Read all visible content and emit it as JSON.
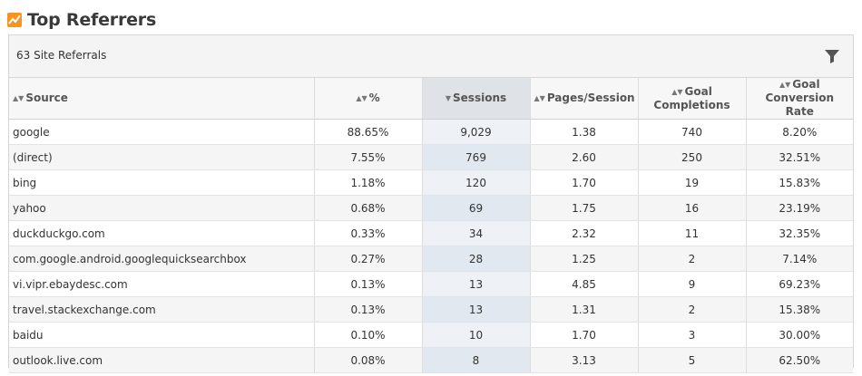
{
  "header": {
    "title": "Top Referrers",
    "icon": "analytics-chart-icon",
    "accent_color": "#f7931e"
  },
  "panel": {
    "count_label": "63 Site Referrals",
    "filter_icon": "filter-icon"
  },
  "table": {
    "columns": [
      {
        "label": "Source"
      },
      {
        "label": "%"
      },
      {
        "label": "Sessions",
        "sorted": "descending"
      },
      {
        "label": "Pages/Session"
      },
      {
        "label": "Goal Completions"
      },
      {
        "label": "Goal Conversion Rate"
      }
    ],
    "rows": [
      {
        "source": "google",
        "pct": "88.65%",
        "sessions": "9,029",
        "pages": "1.38",
        "goals": "740",
        "rate": "8.20%"
      },
      {
        "source": "(direct)",
        "pct": "7.55%",
        "sessions": "769",
        "pages": "2.60",
        "goals": "250",
        "rate": "32.51%"
      },
      {
        "source": "bing",
        "pct": "1.18%",
        "sessions": "120",
        "pages": "1.70",
        "goals": "19",
        "rate": "15.83%"
      },
      {
        "source": "yahoo",
        "pct": "0.68%",
        "sessions": "69",
        "pages": "1.75",
        "goals": "16",
        "rate": "23.19%"
      },
      {
        "source": "duckduckgo.com",
        "pct": "0.33%",
        "sessions": "34",
        "pages": "2.32",
        "goals": "11",
        "rate": "32.35%"
      },
      {
        "source": "com.google.android.googlequicksearchbox",
        "pct": "0.27%",
        "sessions": "28",
        "pages": "1.25",
        "goals": "2",
        "rate": "7.14%"
      },
      {
        "source": "vi.vipr.ebaydesc.com",
        "pct": "0.13%",
        "sessions": "13",
        "pages": "4.85",
        "goals": "9",
        "rate": "69.23%"
      },
      {
        "source": "travel.stackexchange.com",
        "pct": "0.13%",
        "sessions": "13",
        "pages": "1.31",
        "goals": "2",
        "rate": "15.38%"
      },
      {
        "source": "baidu",
        "pct": "0.10%",
        "sessions": "10",
        "pages": "1.70",
        "goals": "3",
        "rate": "30.00%"
      },
      {
        "source": "outlook.live.com",
        "pct": "0.08%",
        "sessions": "8",
        "pages": "3.13",
        "goals": "5",
        "rate": "62.50%"
      }
    ]
  }
}
